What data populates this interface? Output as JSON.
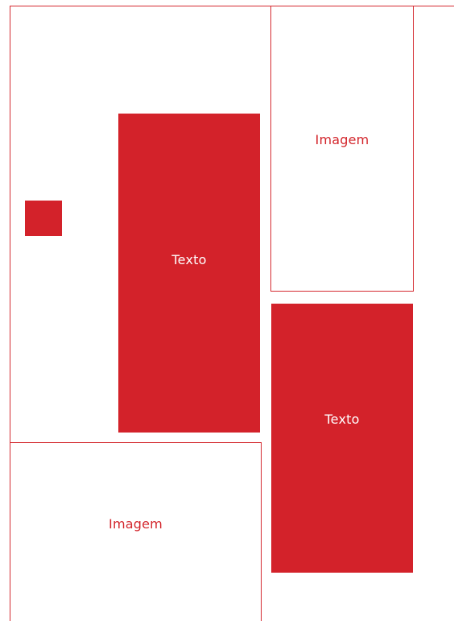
{
  "blocks": {
    "image_top_right": {
      "label": "Imagem"
    },
    "text_center": {
      "label": "Texto"
    },
    "text_bottom_right": {
      "label": "Texto"
    },
    "image_bottom_left": {
      "label": "Imagem"
    }
  },
  "colors": {
    "accent": "#d3222a",
    "outline": "#d42a30",
    "background": "#ffffff"
  }
}
